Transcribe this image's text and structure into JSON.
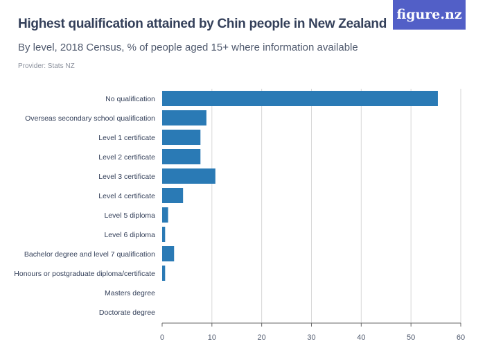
{
  "header": {
    "title": "Highest qualification attained by Chin people in New Zealand",
    "subtitle": "By level, 2018 Census, % of people aged 15+ where information available",
    "provider": "Provider: Stats NZ",
    "logo_text": "figure.nz"
  },
  "colors": {
    "bar": "#2a7ab5",
    "logo_bg": "#525fc7",
    "grid": "#d6d6d6"
  },
  "chart_data": {
    "type": "bar",
    "orientation": "horizontal",
    "title": "Highest qualification attained by Chin people in New Zealand",
    "subtitle": "By level, 2018 Census, % of people aged 15+ where information available",
    "categories": [
      "No qualification",
      "Overseas secondary school qualification",
      "Level 1 certificate",
      "Level 2 certificate",
      "Level 3 certificate",
      "Level 4 certificate",
      "Level 5 diploma",
      "Level 6 diploma",
      "Bachelor degree and level 7 qualification",
      "Honours or postgraduate diploma/certificate",
      "Masters degree",
      "Doctorate degree"
    ],
    "values": [
      55.4,
      8.9,
      7.7,
      7.7,
      10.7,
      4.2,
      1.2,
      0.6,
      2.4,
      0.6,
      0,
      0
    ],
    "xlim": [
      0,
      60
    ],
    "xticks": [
      0,
      10,
      20,
      30,
      40,
      50,
      60
    ],
    "grid": true,
    "xlabel": "",
    "ylabel": ""
  }
}
